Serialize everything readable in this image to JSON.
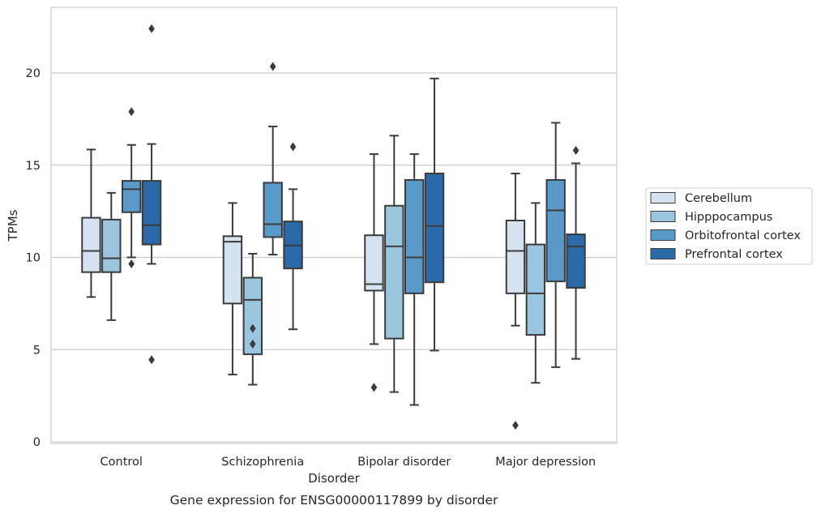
{
  "chart_data": {
    "type": "box",
    "title": "",
    "caption": "Gene expression for ENSG00000117899 by disorder",
    "xlabel": "Disorder",
    "ylabel": "TPMs",
    "ylim": [
      0,
      23.6
    ],
    "yticks": [
      0,
      5,
      10,
      15,
      20
    ],
    "grid": "horizontal",
    "legend_position": "right",
    "categories": [
      "Control",
      "Schizophrenia",
      "Bipolar disorder",
      "Major depression"
    ],
    "series": [
      {
        "name": "Cerebellum",
        "color": "#d5e3f0",
        "boxes": [
          {
            "whislo": 7.85,
            "q1": 9.2,
            "med": 10.35,
            "q3": 12.15,
            "whishi": 15.85,
            "fliers": []
          },
          {
            "whislo": 3.65,
            "q1": 7.5,
            "med": 10.85,
            "q3": 11.15,
            "whishi": 12.95,
            "fliers": []
          },
          {
            "whislo": 5.3,
            "q1": 8.2,
            "med": 8.55,
            "q3": 11.2,
            "whishi": 15.6,
            "fliers": [
              2.95
            ]
          },
          {
            "whislo": 6.3,
            "q1": 8.05,
            "med": 10.35,
            "q3": 12.0,
            "whishi": 14.55,
            "fliers": [
              0.9
            ]
          }
        ]
      },
      {
        "name": "Hipppocampus",
        "color": "#9ac5df",
        "boxes": [
          {
            "whislo": 6.6,
            "q1": 9.2,
            "med": 9.95,
            "q3": 12.05,
            "whishi": 13.5,
            "fliers": []
          },
          {
            "whislo": 3.1,
            "q1": 4.75,
            "med": 7.7,
            "q3": 8.9,
            "whishi": 10.2,
            "fliers": [
              6.15,
              5.3
            ]
          },
          {
            "whislo": 2.7,
            "q1": 5.6,
            "med": 10.6,
            "q3": 12.8,
            "whishi": 16.6,
            "fliers": []
          },
          {
            "whislo": 3.2,
            "q1": 5.8,
            "med": 8.05,
            "q3": 10.7,
            "whishi": 12.95,
            "fliers": []
          }
        ]
      },
      {
        "name": "Orbitofrontal cortex",
        "color": "#5a9ac8",
        "boxes": [
          {
            "whislo": 10.0,
            "q1": 12.45,
            "med": 13.7,
            "q3": 14.15,
            "whishi": 16.1,
            "fliers": [
              17.9,
              9.65
            ]
          },
          {
            "whislo": 10.15,
            "q1": 11.1,
            "med": 11.8,
            "q3": 14.05,
            "whishi": 17.1,
            "fliers": [
              20.35
            ]
          },
          {
            "whislo": 2.0,
            "q1": 8.05,
            "med": 10.0,
            "q3": 14.2,
            "whishi": 15.6,
            "fliers": []
          },
          {
            "whislo": 4.05,
            "q1": 8.7,
            "med": 12.55,
            "q3": 14.2,
            "whishi": 17.3,
            "fliers": []
          }
        ]
      },
      {
        "name": "Prefrontal cortex",
        "color": "#2b6aa8",
        "boxes": [
          {
            "whislo": 9.65,
            "q1": 10.7,
            "med": 11.75,
            "q3": 14.15,
            "whishi": 16.15,
            "fliers": [
              22.4,
              4.45
            ]
          },
          {
            "whislo": 6.1,
            "q1": 9.4,
            "med": 10.65,
            "q3": 11.95,
            "whishi": 13.7,
            "fliers": [
              16.0
            ]
          },
          {
            "whislo": 4.95,
            "q1": 8.65,
            "med": 11.7,
            "q3": 14.55,
            "whishi": 19.7,
            "fliers": []
          },
          {
            "whislo": 4.5,
            "q1": 8.35,
            "med": 10.6,
            "q3": 11.25,
            "whishi": 15.1,
            "fliers": [
              15.8
            ]
          }
        ]
      }
    ]
  }
}
